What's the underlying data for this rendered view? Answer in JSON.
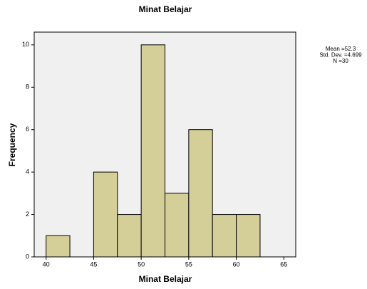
{
  "chart_data": {
    "type": "histogram",
    "title": "Minat Belajar",
    "x_label": "Minat Belajar",
    "y_label": "Frequency",
    "bins": [
      40,
      42.5,
      45,
      47.5,
      50,
      52.5,
      55,
      57.5,
      60,
      62.5
    ],
    "values": [
      1,
      0,
      4,
      2,
      10,
      3,
      6,
      2,
      2
    ],
    "color": "#d4cf98",
    "xlim": [
      38.75,
      66.25
    ],
    "xticks": [
      40,
      45,
      50,
      55,
      60,
      65
    ],
    "ylim": [
      0,
      10.6
    ],
    "yticks": [
      0,
      2,
      4,
      6,
      8,
      10
    ],
    "annotations": [
      "Mean =52.3",
      "Std. Dev. =4.699",
      "N =30"
    ]
  }
}
